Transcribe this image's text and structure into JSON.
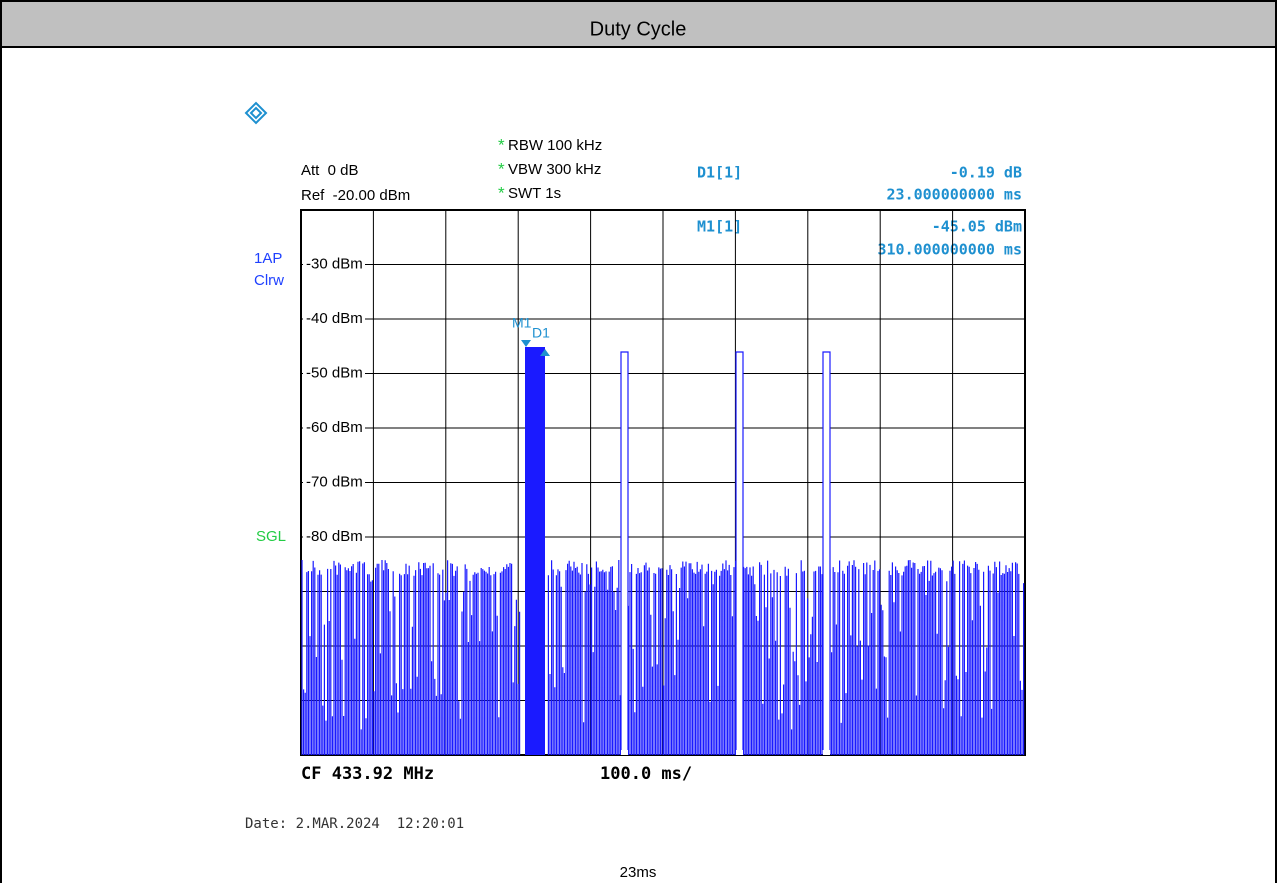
{
  "header": {
    "title": "Duty Cycle"
  },
  "analyzer": {
    "att": "Att  0 dB",
    "ref": "Ref  -20.00 dBm",
    "settings": [
      {
        "flag": "*",
        "text": "RBW 100 kHz"
      },
      {
        "flag": "*",
        "text": "VBW 300 kHz"
      },
      {
        "flag": "*",
        "text": "SWT 1s"
      }
    ],
    "delta": {
      "label": "D1[1]",
      "level": "-0.19 dB",
      "time": "23.000000000 ms"
    },
    "marker": {
      "label": "M1[1]",
      "level": "-45.05 dBm",
      "time": "310.000000000 ms"
    },
    "trace_mode": [
      "1AP",
      "Clrw"
    ],
    "sweep": "SGL",
    "y_labels": [
      "-30 dBm",
      "-40 dBm",
      "-50 dBm",
      "-60 dBm",
      "-70 dBm",
      "-80 dBm"
    ],
    "marker_tags": [
      "M1",
      "D1"
    ],
    "center": "CF 433.92 MHz",
    "span": "100.0 ms/",
    "date": "Date: 2.MAR.2024  12:20:01"
  },
  "caption": "23ms"
}
